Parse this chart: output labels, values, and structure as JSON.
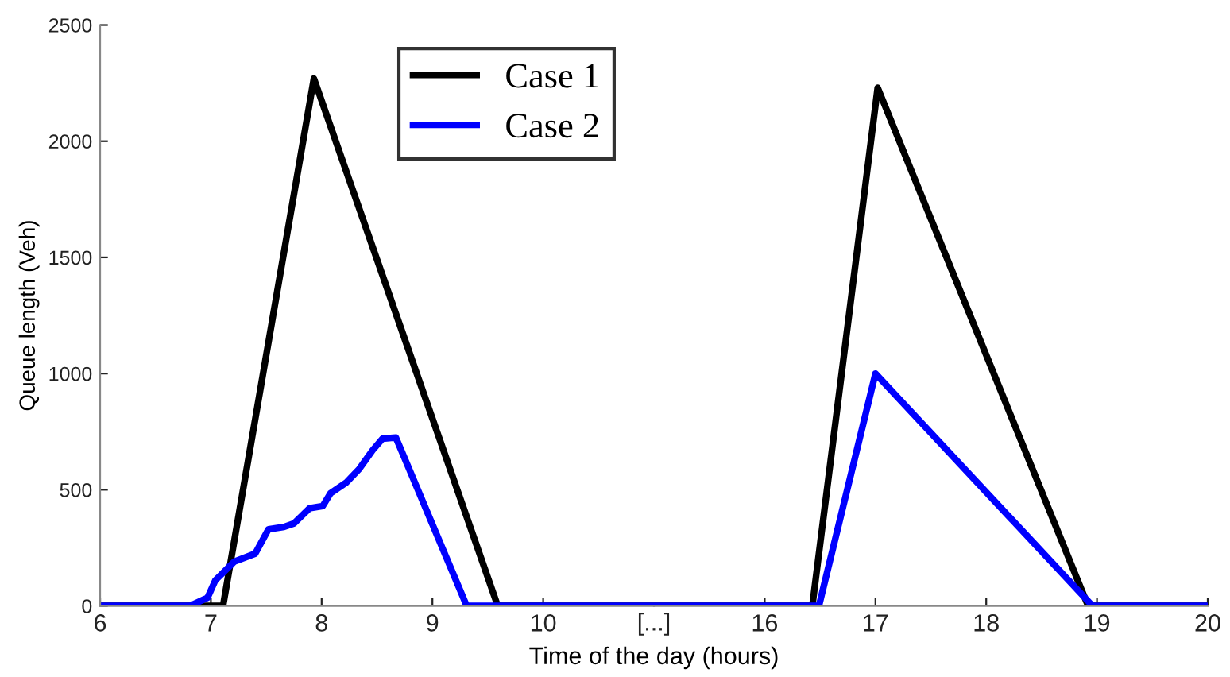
{
  "chart_data": [
    {
      "type": "line",
      "xlabel": "Time of the day (hours)",
      "ylabel": "Queue length (Veh)",
      "annotations": [
        "[...]"
      ],
      "xlim": [
        6,
        11
      ],
      "xticks": [
        6,
        7,
        8,
        9,
        10
      ],
      "ylim": [
        0,
        2500
      ],
      "yticks": [
        0,
        500,
        1000,
        1500,
        2000,
        2500
      ],
      "grid": false,
      "legend": "top right",
      "marker": "none",
      "line_style": "solid",
      "series": [
        {
          "name": "Case 1",
          "color": "#000000",
          "x": [
            6,
            7.11,
            7.93,
            9.59,
            11
          ],
          "values": [
            0,
            0,
            2270,
            0,
            0
          ]
        },
        {
          "name": "Case 2",
          "color": "#0000ff",
          "x": [
            6,
            6.81,
            6.97,
            7.04,
            7.21,
            7.4,
            7.52,
            7.66,
            7.75,
            7.89,
            8.01,
            8.08,
            8.22,
            8.34,
            8.46,
            8.55,
            8.67,
            9.31,
            11
          ],
          "values": [
            0,
            0,
            35,
            110,
            190,
            225,
            330,
            340,
            355,
            420,
            430,
            485,
            530,
            590,
            670,
            720,
            725,
            0,
            0
          ]
        }
      ]
    },
    {
      "type": "line",
      "xlim": [
        15,
        20
      ],
      "xticks": [
        16,
        17,
        18,
        19,
        20
      ],
      "ylim": [
        0,
        2500
      ],
      "tick_labels": "x",
      "grid": false,
      "marker": "none",
      "line_style": "solid",
      "series": [
        {
          "color": "#000000",
          "x": [
            15,
            16.43,
            17.02,
            18.92,
            20
          ],
          "values": [
            0,
            0,
            2230,
            0,
            0
          ]
        },
        {
          "color": "#0000ff",
          "x": [
            15,
            16.49,
            17.0,
            18.96,
            20
          ],
          "values": [
            0,
            0,
            1000,
            0,
            0
          ]
        }
      ]
    }
  ]
}
